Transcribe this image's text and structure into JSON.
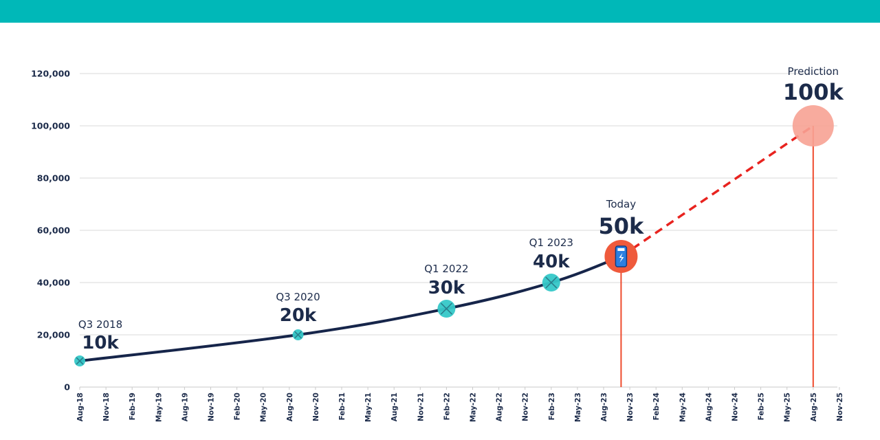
{
  "colors": {
    "band": "#00b8b8",
    "line": "#16254a",
    "teal_marker": "#35c8c8",
    "today_marker": "#ef5a3c",
    "prediction_marker": "#f7a293",
    "dashed": "#e8231f",
    "drop_line": "#ee4a2c",
    "grid": "#d9d9d9",
    "text": "#1c2b4a"
  },
  "chart_data": {
    "type": "line",
    "title": "",
    "xlabel": "",
    "ylabel": "",
    "ylim": [
      0,
      120000
    ],
    "yticks": [
      0,
      20000,
      40000,
      60000,
      80000,
      100000,
      120000
    ],
    "ytick_labels": [
      "0",
      "20,000",
      "40,000",
      "60,000",
      "80,000",
      "100,000",
      "120,000"
    ],
    "x_tick_labels": [
      "Aug-18",
      "Nov-18",
      "Feb-19",
      "May-19",
      "Aug-19",
      "Nov-19",
      "Feb-20",
      "May-20",
      "Aug-20",
      "Nov-20",
      "Feb-21",
      "May-21",
      "Aug-21",
      "Nov-21",
      "Feb-22",
      "May-22",
      "Aug-22",
      "Nov-22",
      "Feb-23",
      "May-23",
      "Aug-23",
      "Nov-23",
      "Feb-24",
      "May-24",
      "Aug-24",
      "Nov-24",
      "Feb-25",
      "May-25",
      "Aug-25",
      "Nov-25"
    ],
    "grid": "horizontal",
    "series": [
      {
        "style": "solid",
        "x": [
          "2018-08",
          "2020-09",
          "2022-02",
          "2023-02",
          "2023-10"
        ],
        "y": [
          10000,
          20000,
          30000,
          40000,
          50000
        ]
      },
      {
        "style": "dashed",
        "x": [
          "2023-10",
          "2025-08"
        ],
        "y": [
          50000,
          100000
        ]
      }
    ],
    "annotations": [
      {
        "x": "2018-08",
        "y": 10000,
        "label": "Q3 2018",
        "value": "10k",
        "marker": "teal-x-small"
      },
      {
        "x": "2020-09",
        "y": 20000,
        "label": "Q3 2020",
        "value": "20k",
        "marker": "teal-x-small"
      },
      {
        "x": "2022-02",
        "y": 30000,
        "label": "Q1 2022",
        "value": "30k",
        "marker": "teal-x"
      },
      {
        "x": "2023-02",
        "y": 40000,
        "label": "Q1 2023",
        "value": "40k",
        "marker": "teal-x"
      },
      {
        "x": "2023-10",
        "y": 50000,
        "label": "Today",
        "value": "50k",
        "marker": "today-phone"
      },
      {
        "x": "2025-08",
        "y": 100000,
        "label": "Prediction",
        "value": "100k",
        "marker": "prediction"
      }
    ]
  }
}
